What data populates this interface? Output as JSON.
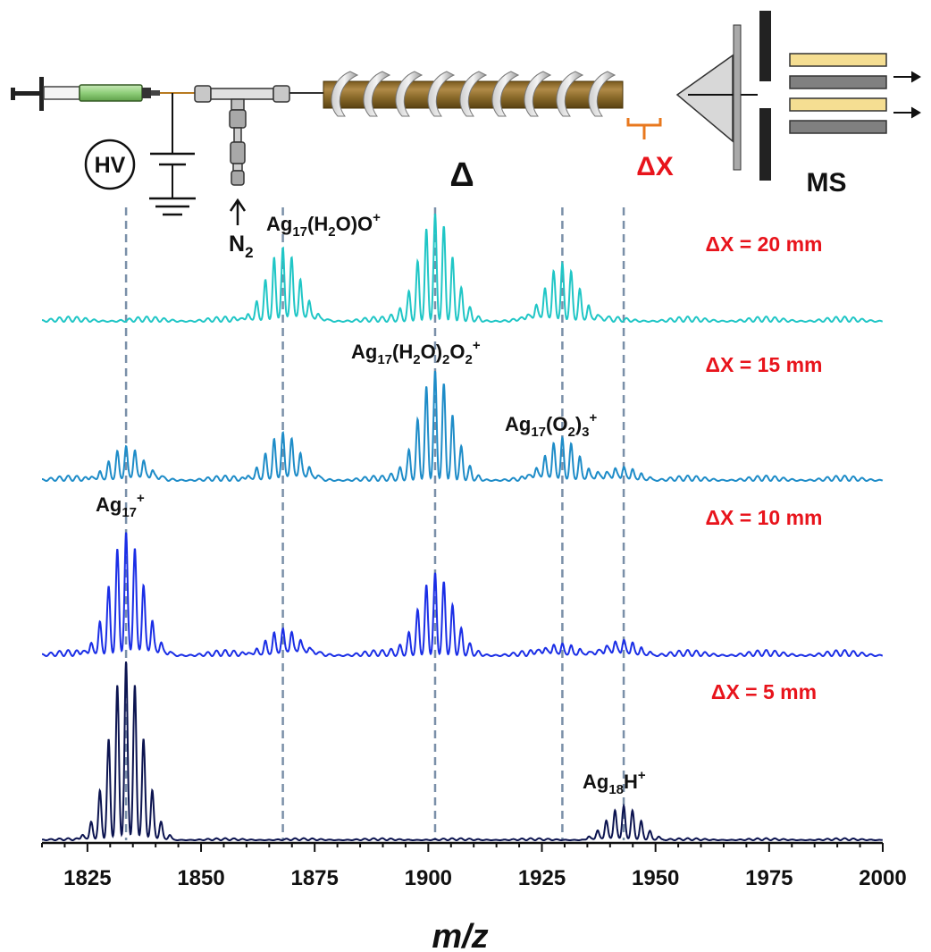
{
  "chart_data": {
    "type": "line",
    "xlabel": "m/z",
    "xlim": [
      1815,
      2000
    ],
    "x_ticks": [
      1825,
      1850,
      1875,
      1900,
      1925,
      1950,
      1975,
      2000
    ],
    "reference_lines_mz": [
      1833.5,
      1868,
      1901.5,
      1929.5,
      1943
    ],
    "series": [
      {
        "name": "ΔX = 20 mm",
        "color": "#20c6c6",
        "peak_groups": [
          {
            "center": 1868,
            "height": 0.7
          },
          {
            "center": 1901.5,
            "height": 1.0
          },
          {
            "center": 1929.5,
            "height": 0.55
          }
        ]
      },
      {
        "name": "ΔX = 15 mm",
        "color": "#1e8cc8",
        "peak_groups": [
          {
            "center": 1833.5,
            "height": 0.32
          },
          {
            "center": 1868,
            "height": 0.45
          },
          {
            "center": 1901.5,
            "height": 1.0
          },
          {
            "center": 1929.5,
            "height": 0.4
          },
          {
            "center": 1943,
            "height": 0.12
          }
        ]
      },
      {
        "name": "ΔX = 10 mm",
        "color": "#1a2ee6",
        "peak_groups": [
          {
            "center": 1833.5,
            "height": 1.0
          },
          {
            "center": 1868,
            "height": 0.22
          },
          {
            "center": 1901.5,
            "height": 0.65
          },
          {
            "center": 1929.5,
            "height": 0.1
          },
          {
            "center": 1943,
            "height": 0.12
          }
        ]
      },
      {
        "name": "ΔX = 5 mm",
        "color": "#0c1450",
        "peak_groups": [
          {
            "center": 1833.5,
            "height": 1.0
          },
          {
            "center": 1943,
            "height": 0.19
          }
        ]
      }
    ],
    "annotations": {
      "a1": {
        "base": "Ag",
        "sub1": "17",
        "mid": "(H",
        "sub2": "2",
        "end": "O)O",
        "sup": "+"
      },
      "a2": {
        "base": "Ag",
        "sub1": "17",
        "mid": "(H",
        "sub2": "2",
        "mid2": "O)",
        "sub3": "2",
        "mid3": "O",
        "sub4": "2",
        "sup": "+"
      },
      "a3": {
        "base": "Ag",
        "sub1": "17",
        "mid": "(O",
        "sub2": "2",
        "mid2": ")",
        "sub3": "3",
        "sup": "+"
      },
      "a4": {
        "base": "Ag",
        "sub1": "17",
        "sup": "+"
      },
      "a5": {
        "base": "Ag",
        "sub1": "18",
        "mid": "H",
        "sup": "+"
      }
    }
  },
  "apparatus": {
    "hv_label": "HV",
    "heater_label": "Δ",
    "gap_label": "ΔX",
    "ms_label": "MS",
    "gas_base": "N",
    "gas_sub": "2"
  }
}
